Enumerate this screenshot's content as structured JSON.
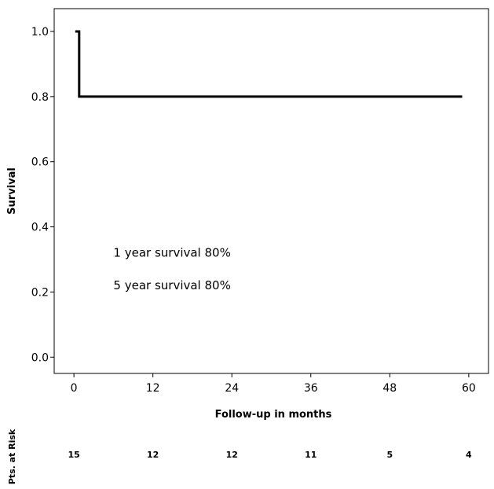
{
  "chart_data": {
    "type": "line",
    "title": "",
    "xlabel": "Follow-up in months",
    "ylabel": "Survival",
    "xlim": [
      -3,
      63
    ],
    "ylim": [
      -0.05,
      1.07
    ],
    "xticks": [
      0,
      12,
      24,
      36,
      48,
      60
    ],
    "xtick_labels": [
      "0",
      "12",
      "24",
      "36",
      "48",
      "60"
    ],
    "yticks": [
      0.0,
      0.2,
      0.4,
      0.6,
      0.8,
      1.0
    ],
    "ytick_labels": [
      "0.0",
      "0.2",
      "0.4",
      "0.6",
      "0.8",
      "1.0"
    ],
    "grid": false,
    "step": true,
    "series": [
      {
        "name": "",
        "x": [
          0.2,
          0.8,
          0.8,
          59
        ],
        "y": [
          1.0,
          1.0,
          0.8,
          0.8
        ]
      }
    ],
    "annotations": [
      {
        "text": "1 year survival 80%",
        "x": 6,
        "y": 0.32
      },
      {
        "text": "5 year survival 80%",
        "x": 6,
        "y": 0.22
      }
    ],
    "at_risk": {
      "label": "Pts. at Risk",
      "x": [
        0,
        12,
        24,
        36,
        48,
        60
      ],
      "values": [
        "15",
        "12",
        "12",
        "11",
        "5",
        "4"
      ]
    }
  }
}
